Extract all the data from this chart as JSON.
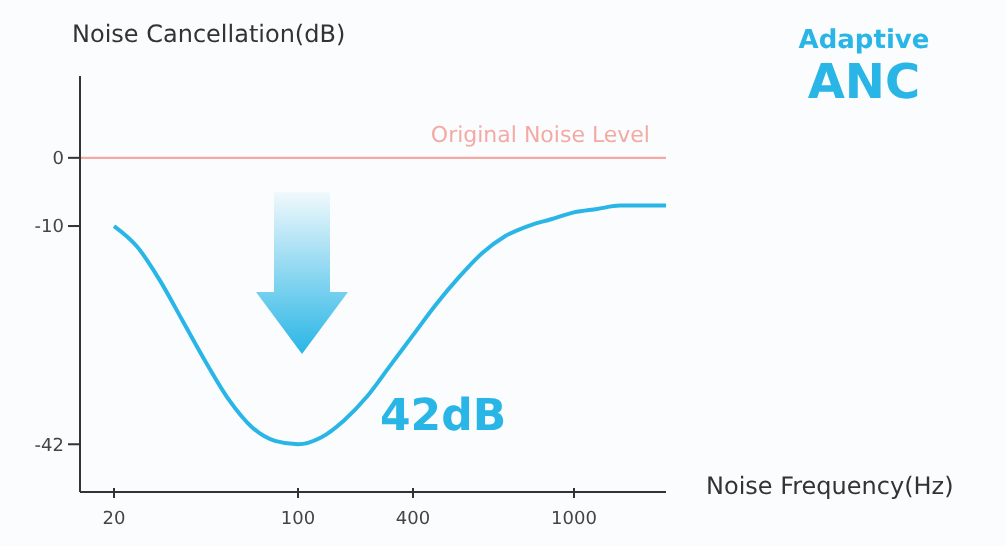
{
  "chart_data": {
    "type": "line",
    "xlabel": "Noise Frequency(Hz)",
    "ylabel": "Noise Cancellation(dB)",
    "annotations": [
      "42dB",
      "Adaptive ANC"
    ],
    "categories": [
      "20",
      null,
      null,
      null,
      null,
      null,
      null,
      null,
      "100",
      null,
      null,
      null,
      null,
      "400",
      null,
      null,
      null,
      null,
      null,
      null,
      "1000",
      null,
      null,
      null,
      null
    ],
    "series": [
      {
        "color": "#29b6e6",
        "values": [
          -10,
          -13,
          -18,
          -24,
          -30,
          -35.5,
          -39.5,
          -41.5,
          -42,
          -41,
          -38.5,
          -35,
          -30.5,
          -26,
          -21.5,
          -17.5,
          -14,
          -11.5,
          -10,
          -9,
          -8,
          -7.5,
          -7,
          -7,
          -7
        ]
      }
    ],
    "ylim": [
      -49,
      12
    ],
    "yticks": [
      0,
      -10,
      -42
    ],
    "marker": "none",
    "ref_lines": [
      {
        "axis": "y",
        "value": 0,
        "label": "Original Noise Level",
        "color": "#f4aaa4"
      }
    ]
  }
}
